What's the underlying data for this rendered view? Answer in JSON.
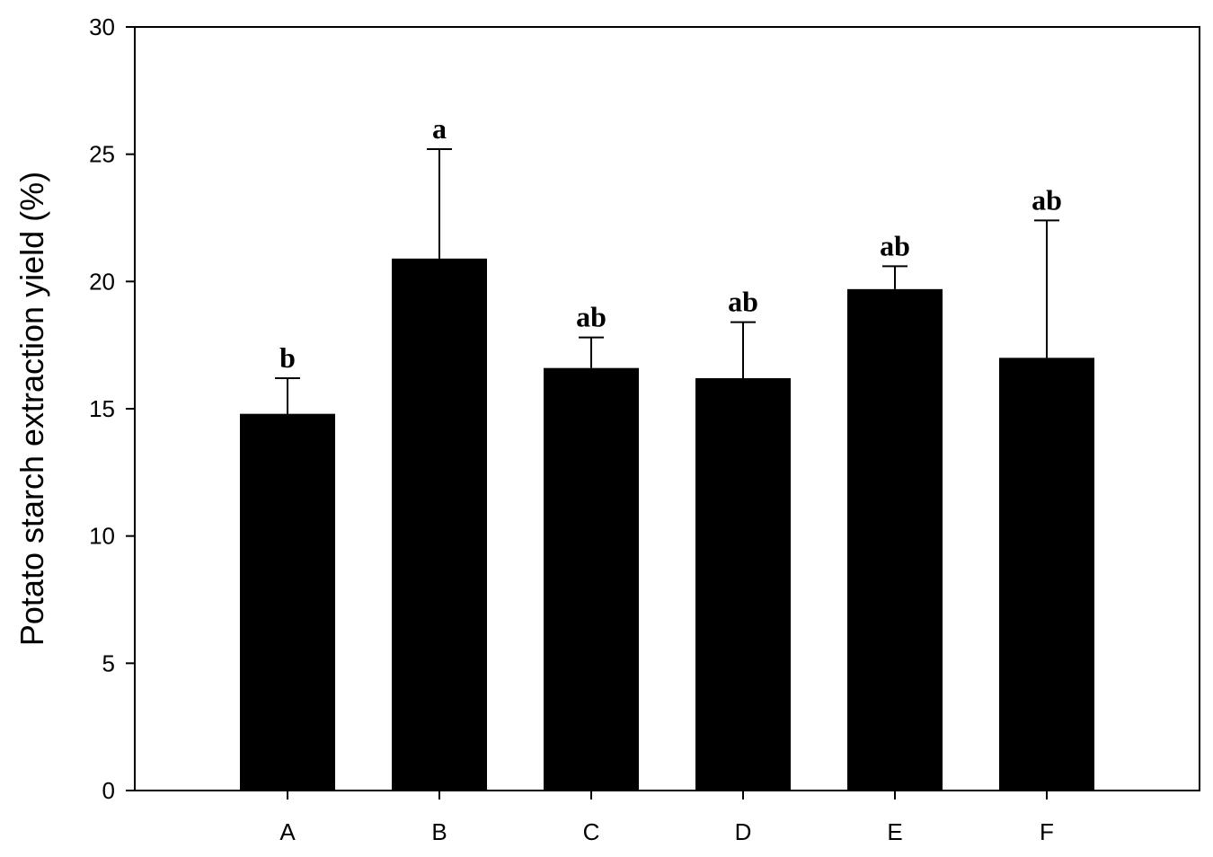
{
  "chart_data": {
    "type": "bar",
    "title": "",
    "xlabel": "",
    "ylabel": "Potato starch extraction yield (%)",
    "ylim": [
      0,
      30
    ],
    "yticks": [
      0,
      5,
      10,
      15,
      20,
      25,
      30
    ],
    "categories": [
      "A",
      "B",
      "C",
      "D",
      "E",
      "F"
    ],
    "values": [
      14.8,
      20.9,
      16.6,
      16.2,
      19.7,
      17.0
    ],
    "errors": [
      1.4,
      4.3,
      1.2,
      2.2,
      0.9,
      5.4
    ],
    "significance_labels": [
      "b",
      "a",
      "ab",
      "ab",
      "ab",
      "ab"
    ],
    "bar_color": "#000000",
    "grid": false,
    "legend": "none"
  }
}
